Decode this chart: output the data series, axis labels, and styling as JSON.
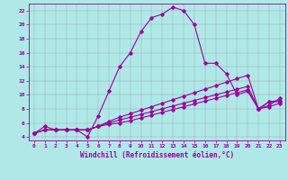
{
  "title": "",
  "xlabel": "Windchill (Refroidissement éolien,°C)",
  "bg_color": "#b0e8e8",
  "line_color": "#990099",
  "grid_color": "#888888",
  "xlim": [
    -0.5,
    23.5
  ],
  "ylim": [
    3.5,
    23
  ],
  "xticks": [
    0,
    1,
    2,
    3,
    4,
    5,
    6,
    7,
    8,
    9,
    10,
    11,
    12,
    13,
    14,
    15,
    16,
    17,
    18,
    19,
    20,
    21,
    22,
    23
  ],
  "yticks": [
    4,
    6,
    8,
    10,
    12,
    14,
    16,
    18,
    20,
    22
  ],
  "lines": [
    {
      "x": [
        0,
        1,
        2,
        3,
        4,
        5,
        6,
        7,
        8,
        9,
        10,
        11,
        12,
        13,
        14,
        15,
        16,
        17,
        18,
        19,
        20,
        21,
        22,
        23
      ],
      "y": [
        4.5,
        5.5,
        5.0,
        5.0,
        5.0,
        4.0,
        7.0,
        10.5,
        14.0,
        16.0,
        19.0,
        21.0,
        21.5,
        22.5,
        22.0,
        20.0,
        14.5,
        14.5,
        13.0,
        10.0,
        10.5,
        8.0,
        9.0,
        9.0
      ]
    },
    {
      "x": [
        0,
        1,
        2,
        3,
        4,
        5,
        6,
        7,
        8,
        9,
        10,
        11,
        12,
        13,
        14,
        15,
        16,
        17,
        18,
        19,
        20,
        21,
        22,
        23
      ],
      "y": [
        4.5,
        5.0,
        5.0,
        5.0,
        5.0,
        5.0,
        5.5,
        6.2,
        6.8,
        7.3,
        7.8,
        8.3,
        8.8,
        9.3,
        9.8,
        10.3,
        10.8,
        11.3,
        11.8,
        12.3,
        12.8,
        8.0,
        9.0,
        9.2
      ]
    },
    {
      "x": [
        0,
        1,
        2,
        3,
        4,
        5,
        6,
        7,
        8,
        9,
        10,
        11,
        12,
        13,
        14,
        15,
        16,
        17,
        18,
        19,
        20,
        21,
        22,
        23
      ],
      "y": [
        4.5,
        5.0,
        5.0,
        5.0,
        5.0,
        5.0,
        5.5,
        6.0,
        6.4,
        6.8,
        7.2,
        7.6,
        8.0,
        8.4,
        8.8,
        9.2,
        9.6,
        10.0,
        10.4,
        10.8,
        11.2,
        8.0,
        8.5,
        9.5
      ]
    },
    {
      "x": [
        0,
        1,
        2,
        3,
        4,
        5,
        6,
        7,
        8,
        9,
        10,
        11,
        12,
        13,
        14,
        15,
        16,
        17,
        18,
        19,
        20,
        21,
        22,
        23
      ],
      "y": [
        4.5,
        5.0,
        5.0,
        5.0,
        5.0,
        5.0,
        5.5,
        5.8,
        6.0,
        6.3,
        6.7,
        7.1,
        7.5,
        7.9,
        8.3,
        8.7,
        9.1,
        9.5,
        9.9,
        10.3,
        10.7,
        8.0,
        8.3,
        8.8
      ]
    }
  ]
}
